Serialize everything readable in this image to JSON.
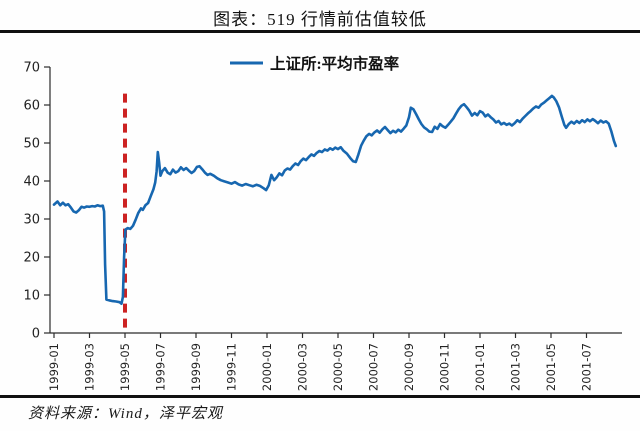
{
  "title": "图表：519 行情前估值较低",
  "source": "资料来源：Wind，泽平宏观",
  "legend_label": "上证所:平均市盈率",
  "colors": {
    "line": "#1767b0",
    "event_line": "#cc2222",
    "axis": "#2b2b2b",
    "tick_text": "#222222",
    "rule": "#101010"
  },
  "chart_data": {
    "type": "line",
    "title": "图表：519 行情前估值较低",
    "xlabel": "",
    "ylabel": "",
    "ylim": [
      0,
      70
    ],
    "yticks": [
      0,
      10,
      20,
      30,
      40,
      50,
      60,
      70
    ],
    "grid": false,
    "legend_position": "top-center",
    "x_unit": "months since 1999-01",
    "x_tick_months": [
      0,
      2,
      4,
      6,
      8,
      10,
      12,
      14,
      16,
      18,
      20,
      22,
      24,
      26,
      28,
      30
    ],
    "x_tick_labels": [
      "1999-01",
      "1999-03",
      "1999-05",
      "1999-07",
      "1999-09",
      "1999-11",
      "2000-01",
      "2000-03",
      "2000-05",
      "2000-07",
      "2000-09",
      "2000-11",
      "2001-01",
      "2001-03",
      "2001-05",
      "2001-07"
    ],
    "event_line": {
      "label": "1999-05",
      "x_month": 4,
      "style": "dashed",
      "color": "#cc2222",
      "y_top_value": 63
    },
    "series": [
      {
        "name": "上证所:平均市盈率",
        "color": "#1767b0",
        "points": [
          [
            0.0,
            33.8
          ],
          [
            0.2,
            34.6
          ],
          [
            0.35,
            33.6
          ],
          [
            0.5,
            34.3
          ],
          [
            0.65,
            33.6
          ],
          [
            0.8,
            33.9
          ],
          [
            0.95,
            33.0
          ],
          [
            1.1,
            32.0
          ],
          [
            1.25,
            31.7
          ],
          [
            1.4,
            32.3
          ],
          [
            1.55,
            33.2
          ],
          [
            1.7,
            33.0
          ],
          [
            1.85,
            33.3
          ],
          [
            2.0,
            33.2
          ],
          [
            2.15,
            33.4
          ],
          [
            2.3,
            33.3
          ],
          [
            2.45,
            33.6
          ],
          [
            2.6,
            33.4
          ],
          [
            2.75,
            33.5
          ],
          [
            2.82,
            32.0
          ],
          [
            2.88,
            18.0
          ],
          [
            2.95,
            8.8
          ],
          [
            3.1,
            8.6
          ],
          [
            3.3,
            8.4
          ],
          [
            3.5,
            8.3
          ],
          [
            3.7,
            8.1
          ],
          [
            3.8,
            7.7
          ],
          [
            3.88,
            9.5
          ],
          [
            3.95,
            20.0
          ],
          [
            4.02,
            27.2
          ],
          [
            4.15,
            27.6
          ],
          [
            4.3,
            27.4
          ],
          [
            4.45,
            28.2
          ],
          [
            4.6,
            29.8
          ],
          [
            4.75,
            31.6
          ],
          [
            4.9,
            32.8
          ],
          [
            5.0,
            32.4
          ],
          [
            5.15,
            33.6
          ],
          [
            5.3,
            34.2
          ],
          [
            5.45,
            36.0
          ],
          [
            5.6,
            37.8
          ],
          [
            5.7,
            39.6
          ],
          [
            5.78,
            42.5
          ],
          [
            5.85,
            47.6
          ],
          [
            5.92,
            45.0
          ],
          [
            6.0,
            41.4
          ],
          [
            6.1,
            42.6
          ],
          [
            6.25,
            43.4
          ],
          [
            6.4,
            42.2
          ],
          [
            6.55,
            41.8
          ],
          [
            6.7,
            43.0
          ],
          [
            6.85,
            42.2
          ],
          [
            7.0,
            42.6
          ],
          [
            7.15,
            43.6
          ],
          [
            7.3,
            42.9
          ],
          [
            7.45,
            43.4
          ],
          [
            7.6,
            42.7
          ],
          [
            7.75,
            42.1
          ],
          [
            7.9,
            42.6
          ],
          [
            8.05,
            43.7
          ],
          [
            8.2,
            43.9
          ],
          [
            8.35,
            43.1
          ],
          [
            8.5,
            42.2
          ],
          [
            8.65,
            41.6
          ],
          [
            8.8,
            41.9
          ],
          [
            9.0,
            41.4
          ],
          [
            9.2,
            40.7
          ],
          [
            9.4,
            40.2
          ],
          [
            9.6,
            39.9
          ],
          [
            9.8,
            39.6
          ],
          [
            10.0,
            39.3
          ],
          [
            10.2,
            39.7
          ],
          [
            10.4,
            39.1
          ],
          [
            10.6,
            38.8
          ],
          [
            10.8,
            39.2
          ],
          [
            11.0,
            38.9
          ],
          [
            11.2,
            38.6
          ],
          [
            11.4,
            39.0
          ],
          [
            11.6,
            38.7
          ],
          [
            11.8,
            38.1
          ],
          [
            11.95,
            37.6
          ],
          [
            12.1,
            38.9
          ],
          [
            12.25,
            41.6
          ],
          [
            12.4,
            40.2
          ],
          [
            12.55,
            41.0
          ],
          [
            12.7,
            42.0
          ],
          [
            12.85,
            41.5
          ],
          [
            13.0,
            42.8
          ],
          [
            13.15,
            43.3
          ],
          [
            13.3,
            43.0
          ],
          [
            13.45,
            43.9
          ],
          [
            13.6,
            44.6
          ],
          [
            13.75,
            44.2
          ],
          [
            13.9,
            45.2
          ],
          [
            14.05,
            45.9
          ],
          [
            14.2,
            45.5
          ],
          [
            14.35,
            46.3
          ],
          [
            14.5,
            47.0
          ],
          [
            14.65,
            46.6
          ],
          [
            14.8,
            47.4
          ],
          [
            14.95,
            47.9
          ],
          [
            15.1,
            47.6
          ],
          [
            15.25,
            48.3
          ],
          [
            15.4,
            48.0
          ],
          [
            15.55,
            48.6
          ],
          [
            15.7,
            48.2
          ],
          [
            15.85,
            48.8
          ],
          [
            16.0,
            48.4
          ],
          [
            16.15,
            48.9
          ],
          [
            16.3,
            48.0
          ],
          [
            16.5,
            47.2
          ],
          [
            16.7,
            46.0
          ],
          [
            16.85,
            45.2
          ],
          [
            17.0,
            45.0
          ],
          [
            17.15,
            47.0
          ],
          [
            17.3,
            49.3
          ],
          [
            17.45,
            50.6
          ],
          [
            17.6,
            51.8
          ],
          [
            17.75,
            52.4
          ],
          [
            17.9,
            52.0
          ],
          [
            18.05,
            52.8
          ],
          [
            18.2,
            53.3
          ],
          [
            18.35,
            52.7
          ],
          [
            18.5,
            53.6
          ],
          [
            18.65,
            54.2
          ],
          [
            18.8,
            53.4
          ],
          [
            18.95,
            52.6
          ],
          [
            19.1,
            53.2
          ],
          [
            19.25,
            52.8
          ],
          [
            19.4,
            53.5
          ],
          [
            19.55,
            53.0
          ],
          [
            19.7,
            53.8
          ],
          [
            19.85,
            54.6
          ],
          [
            20.0,
            56.8
          ],
          [
            20.1,
            59.3
          ],
          [
            20.25,
            58.9
          ],
          [
            20.4,
            57.6
          ],
          [
            20.55,
            56.2
          ],
          [
            20.7,
            55.0
          ],
          [
            20.85,
            54.1
          ],
          [
            21.0,
            53.6
          ],
          [
            21.15,
            53.0
          ],
          [
            21.3,
            52.9
          ],
          [
            21.45,
            54.3
          ],
          [
            21.6,
            53.7
          ],
          [
            21.75,
            55.0
          ],
          [
            21.9,
            54.4
          ],
          [
            22.05,
            54.0
          ],
          [
            22.2,
            54.8
          ],
          [
            22.35,
            55.6
          ],
          [
            22.5,
            56.5
          ],
          [
            22.65,
            57.7
          ],
          [
            22.8,
            58.9
          ],
          [
            22.95,
            59.8
          ],
          [
            23.1,
            60.2
          ],
          [
            23.25,
            59.4
          ],
          [
            23.4,
            58.5
          ],
          [
            23.55,
            57.2
          ],
          [
            23.7,
            57.9
          ],
          [
            23.85,
            57.3
          ],
          [
            24.0,
            58.4
          ],
          [
            24.15,
            58.0
          ],
          [
            24.3,
            57.0
          ],
          [
            24.45,
            57.5
          ],
          [
            24.6,
            56.8
          ],
          [
            24.75,
            56.2
          ],
          [
            24.9,
            55.4
          ],
          [
            25.05,
            55.8
          ],
          [
            25.2,
            54.9
          ],
          [
            25.35,
            55.3
          ],
          [
            25.5,
            54.8
          ],
          [
            25.65,
            55.1
          ],
          [
            25.8,
            54.6
          ],
          [
            25.95,
            55.2
          ],
          [
            26.1,
            56.0
          ],
          [
            26.25,
            55.5
          ],
          [
            26.4,
            56.4
          ],
          [
            26.55,
            57.1
          ],
          [
            26.7,
            57.8
          ],
          [
            26.85,
            58.4
          ],
          [
            27.0,
            59.1
          ],
          [
            27.15,
            59.6
          ],
          [
            27.3,
            59.3
          ],
          [
            27.45,
            60.1
          ],
          [
            27.6,
            60.6
          ],
          [
            27.75,
            61.2
          ],
          [
            27.9,
            61.8
          ],
          [
            28.05,
            62.4
          ],
          [
            28.15,
            62.0
          ],
          [
            28.3,
            61.0
          ],
          [
            28.45,
            59.4
          ],
          [
            28.6,
            57.0
          ],
          [
            28.75,
            54.8
          ],
          [
            28.85,
            54.0
          ],
          [
            29.0,
            55.0
          ],
          [
            29.15,
            55.6
          ],
          [
            29.3,
            55.1
          ],
          [
            29.45,
            55.8
          ],
          [
            29.6,
            55.3
          ],
          [
            29.75,
            56.0
          ],
          [
            29.9,
            55.5
          ],
          [
            30.05,
            56.2
          ],
          [
            30.2,
            55.7
          ],
          [
            30.35,
            56.3
          ],
          [
            30.5,
            55.8
          ],
          [
            30.65,
            55.2
          ],
          [
            30.8,
            55.9
          ],
          [
            30.95,
            55.4
          ],
          [
            31.1,
            55.7
          ],
          [
            31.25,
            55.1
          ],
          [
            31.4,
            53.0
          ],
          [
            31.55,
            50.5
          ],
          [
            31.65,
            49.2
          ]
        ]
      }
    ]
  }
}
